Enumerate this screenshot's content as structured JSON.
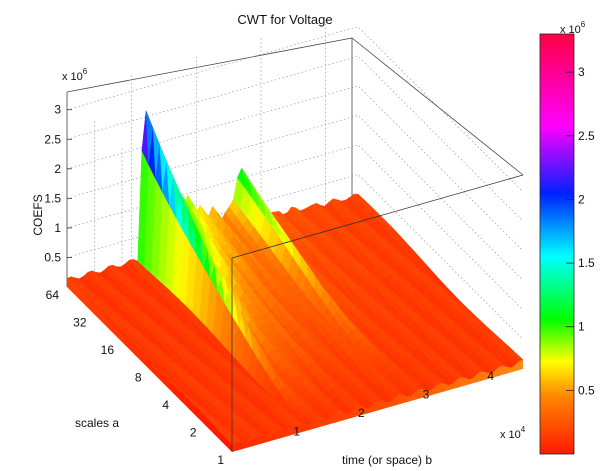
{
  "chart_data": {
    "type": "surface",
    "title": "CWT for Voltage",
    "zlabel": "COEFS",
    "ylabel": "scales a",
    "xlabel": "time (or space) b",
    "z_tick_labels": [
      "0.5",
      "1",
      "1.5",
      "2",
      "2.5",
      "3"
    ],
    "z_exponent": "x 10",
    "z_exponent_power": "6",
    "scale_tick_labels": [
      "1",
      "2",
      "4",
      "8",
      "16",
      "32",
      "64"
    ],
    "time_tick_labels": [
      "1",
      "2",
      "3",
      "4"
    ],
    "time_exponent": "x 10",
    "time_exponent_power": "4",
    "colorbar_tick_labels": [
      "0.5",
      "1",
      "1.5",
      "2",
      "2.5",
      "3"
    ],
    "colorbar_exponent": "x 10",
    "colorbar_exponent_power": "6",
    "colormap": [
      "#ff0000",
      "#ff8000",
      "#ffff00",
      "#00ff00",
      "#00ffff",
      "#0000ff",
      "#ff00ff",
      "#ff0040"
    ],
    "zlim": [
      0,
      3300000
    ],
    "xlim": [
      0,
      45000
    ],
    "ylim": [
      1,
      64
    ],
    "peak_time": 12000,
    "peak_value": 3300000,
    "secondary_peak_time": 27000,
    "secondary_peak_value": 2200000,
    "grid": true
  }
}
